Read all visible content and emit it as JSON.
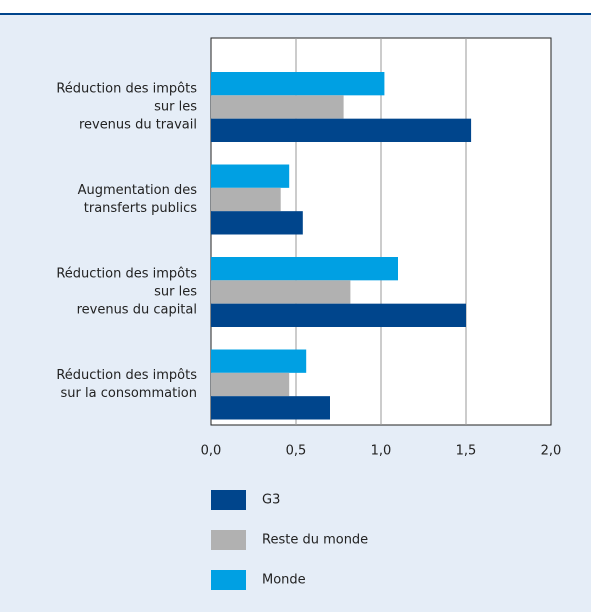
{
  "chart_data": {
    "type": "bar",
    "orientation": "horizontal",
    "categories": [
      [
        "Réduction des impôts",
        "sur les",
        "revenus du travail"
      ],
      [
        "Augmentation des",
        "transferts publics"
      ],
      [
        "Réduction des impôts",
        "sur les",
        "revenus du capital"
      ],
      [
        "Réduction des impôts",
        "sur la consommation"
      ]
    ],
    "series": [
      {
        "name": "G3",
        "color": "#00458c",
        "values": [
          1.53,
          0.54,
          1.5,
          0.7
        ]
      },
      {
        "name": "Reste du monde",
        "color": "#b1b1b1",
        "values": [
          0.78,
          0.41,
          0.82,
          0.46
        ]
      },
      {
        "name": "Monde",
        "color": "#00a0e3",
        "values": [
          1.02,
          0.46,
          1.1,
          0.56
        ]
      }
    ],
    "xlim": [
      0,
      2
    ],
    "xticks": [
      {
        "value": 0,
        "label": "0,0"
      },
      {
        "value": 0.5,
        "label": "0,5"
      },
      {
        "value": 1,
        "label": "1,0"
      },
      {
        "value": 1.5,
        "label": "1,5"
      },
      {
        "value": 2,
        "label": "2,0"
      }
    ],
    "grid": true
  }
}
